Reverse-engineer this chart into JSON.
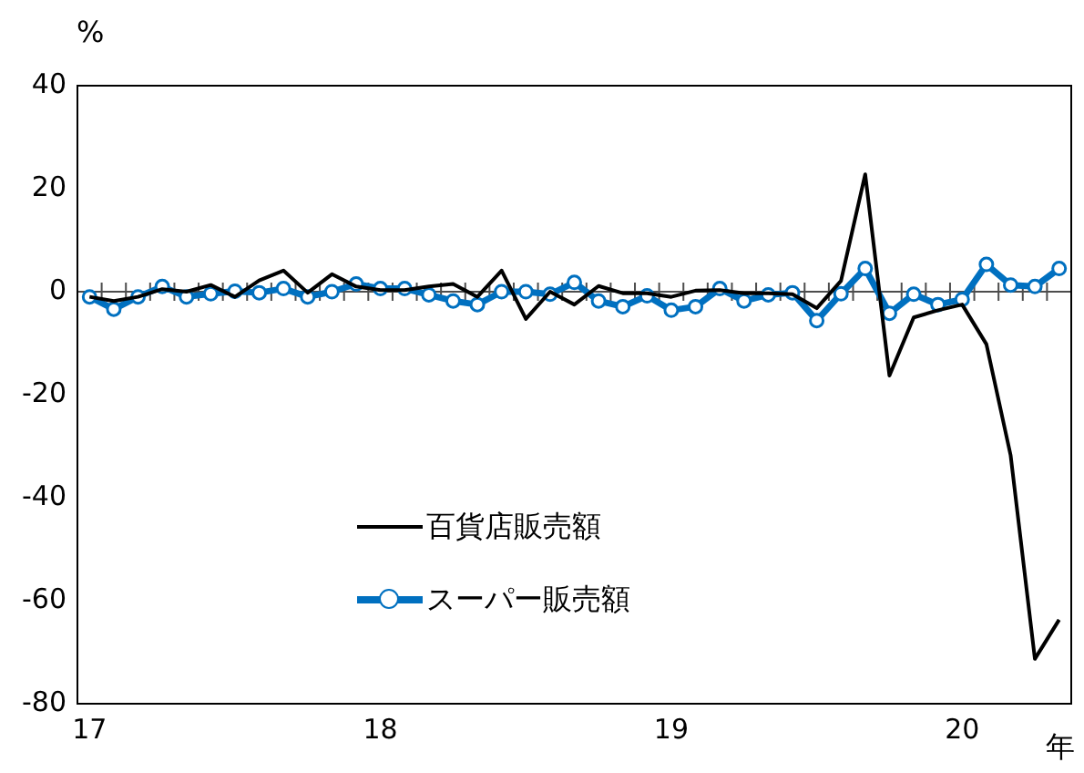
{
  "chart_data": {
    "type": "line",
    "ylabel": "%",
    "xlabel": "年",
    "categories": [
      "17",
      null,
      null,
      null,
      null,
      null,
      null,
      null,
      null,
      null,
      null,
      null,
      "18",
      null,
      null,
      null,
      null,
      null,
      null,
      null,
      null,
      null,
      null,
      null,
      "19",
      null,
      null,
      null,
      null,
      null,
      null,
      null,
      null,
      null,
      null,
      null,
      "20",
      null,
      null,
      null,
      null
    ],
    "series": [
      {
        "name": "百貨店販売額",
        "color": "#000000",
        "marker": "none",
        "values": [
          -1,
          -1.8,
          -1,
          0.5,
          0,
          1.3,
          -1,
          2.2,
          4.1,
          -0.2,
          3.4,
          1,
          0.3,
          0.3,
          1,
          1.5,
          -1,
          4.1,
          -5.3,
          0,
          -2.5,
          1.1,
          -0.3,
          -0.3,
          -1,
          0.2,
          0.3,
          -0.3,
          -0.3,
          -0.5,
          -3.2,
          2.1,
          22.8,
          -16.3,
          -5,
          -3.6,
          -2.5,
          -10.2,
          -31.8,
          -71.3,
          -63.7
        ]
      },
      {
        "name": "スーパー販売額",
        "color": "#0070c0",
        "marker": "circle",
        "values": [
          -1,
          -3.4,
          -1,
          1,
          -1,
          -0.4,
          0.1,
          -0.2,
          0.6,
          -1,
          0,
          1.5,
          0.6,
          0.6,
          -0.6,
          -1.8,
          -2.5,
          0,
          0,
          -0.5,
          1.8,
          -1.8,
          -2.9,
          -0.8,
          -3.6,
          -2.9,
          0.6,
          -1.8,
          -0.6,
          -0.2,
          -5.6,
          -0.4,
          4.5,
          -4.2,
          -0.5,
          -2.5,
          -1.5,
          5.3,
          1.3,
          1,
          4.5
        ]
      }
    ],
    "ylim": [
      -80,
      40
    ],
    "yticks": [
      -80,
      -60,
      -40,
      -20,
      0,
      20,
      40
    ],
    "ref_lines": [
      {
        "axis": "y",
        "value": 0
      }
    ],
    "grid": false,
    "legend": "bottom left"
  }
}
